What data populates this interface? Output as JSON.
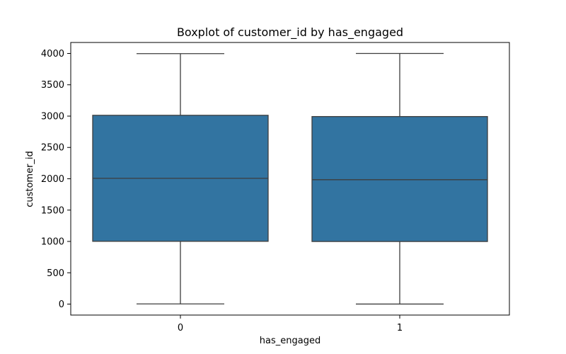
{
  "chart_data": {
    "type": "box",
    "title": "Boxplot of customer_id by has_engaged",
    "xlabel": "has_engaged",
    "ylabel": "customer_id",
    "categories": [
      "0",
      "1"
    ],
    "ylim": [
      -175,
      4175
    ],
    "yticks": [
      0,
      500,
      1000,
      1500,
      2000,
      2500,
      3000,
      3500,
      4000
    ],
    "boxes": [
      {
        "category": "0",
        "min": 3,
        "q1": 1002,
        "median": 2007,
        "q3": 3013,
        "max": 3997
      },
      {
        "category": "1",
        "min": 1,
        "q1": 999,
        "median": 1985,
        "q3": 2993,
        "max": 4000
      }
    ],
    "grid": false,
    "box_color": "#3274a1",
    "line_color": "#3d3d3d"
  }
}
